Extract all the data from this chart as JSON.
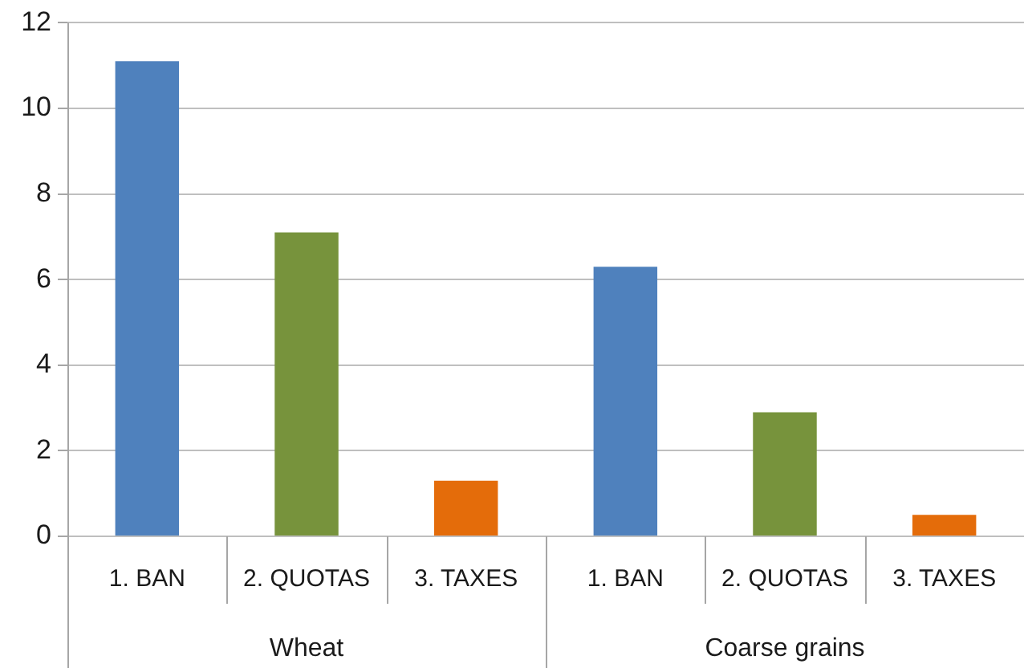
{
  "chart_data": {
    "type": "bar",
    "categories": [
      "Wheat",
      "Coarse grains"
    ],
    "series": [
      {
        "name": "1. BAN",
        "color": "#4f81bd",
        "values": [
          11.1,
          6.3
        ]
      },
      {
        "name": "2. QUOTAS",
        "color": "#77933c",
        "values": [
          7.1,
          2.9
        ]
      },
      {
        "name": "3. TAXES",
        "color": "#e46c0a",
        "values": [
          1.3,
          0.5
        ]
      }
    ],
    "ylim": [
      0,
      12
    ],
    "yticks": [
      0,
      2,
      4,
      6,
      8,
      10,
      12
    ],
    "grid": "y"
  }
}
